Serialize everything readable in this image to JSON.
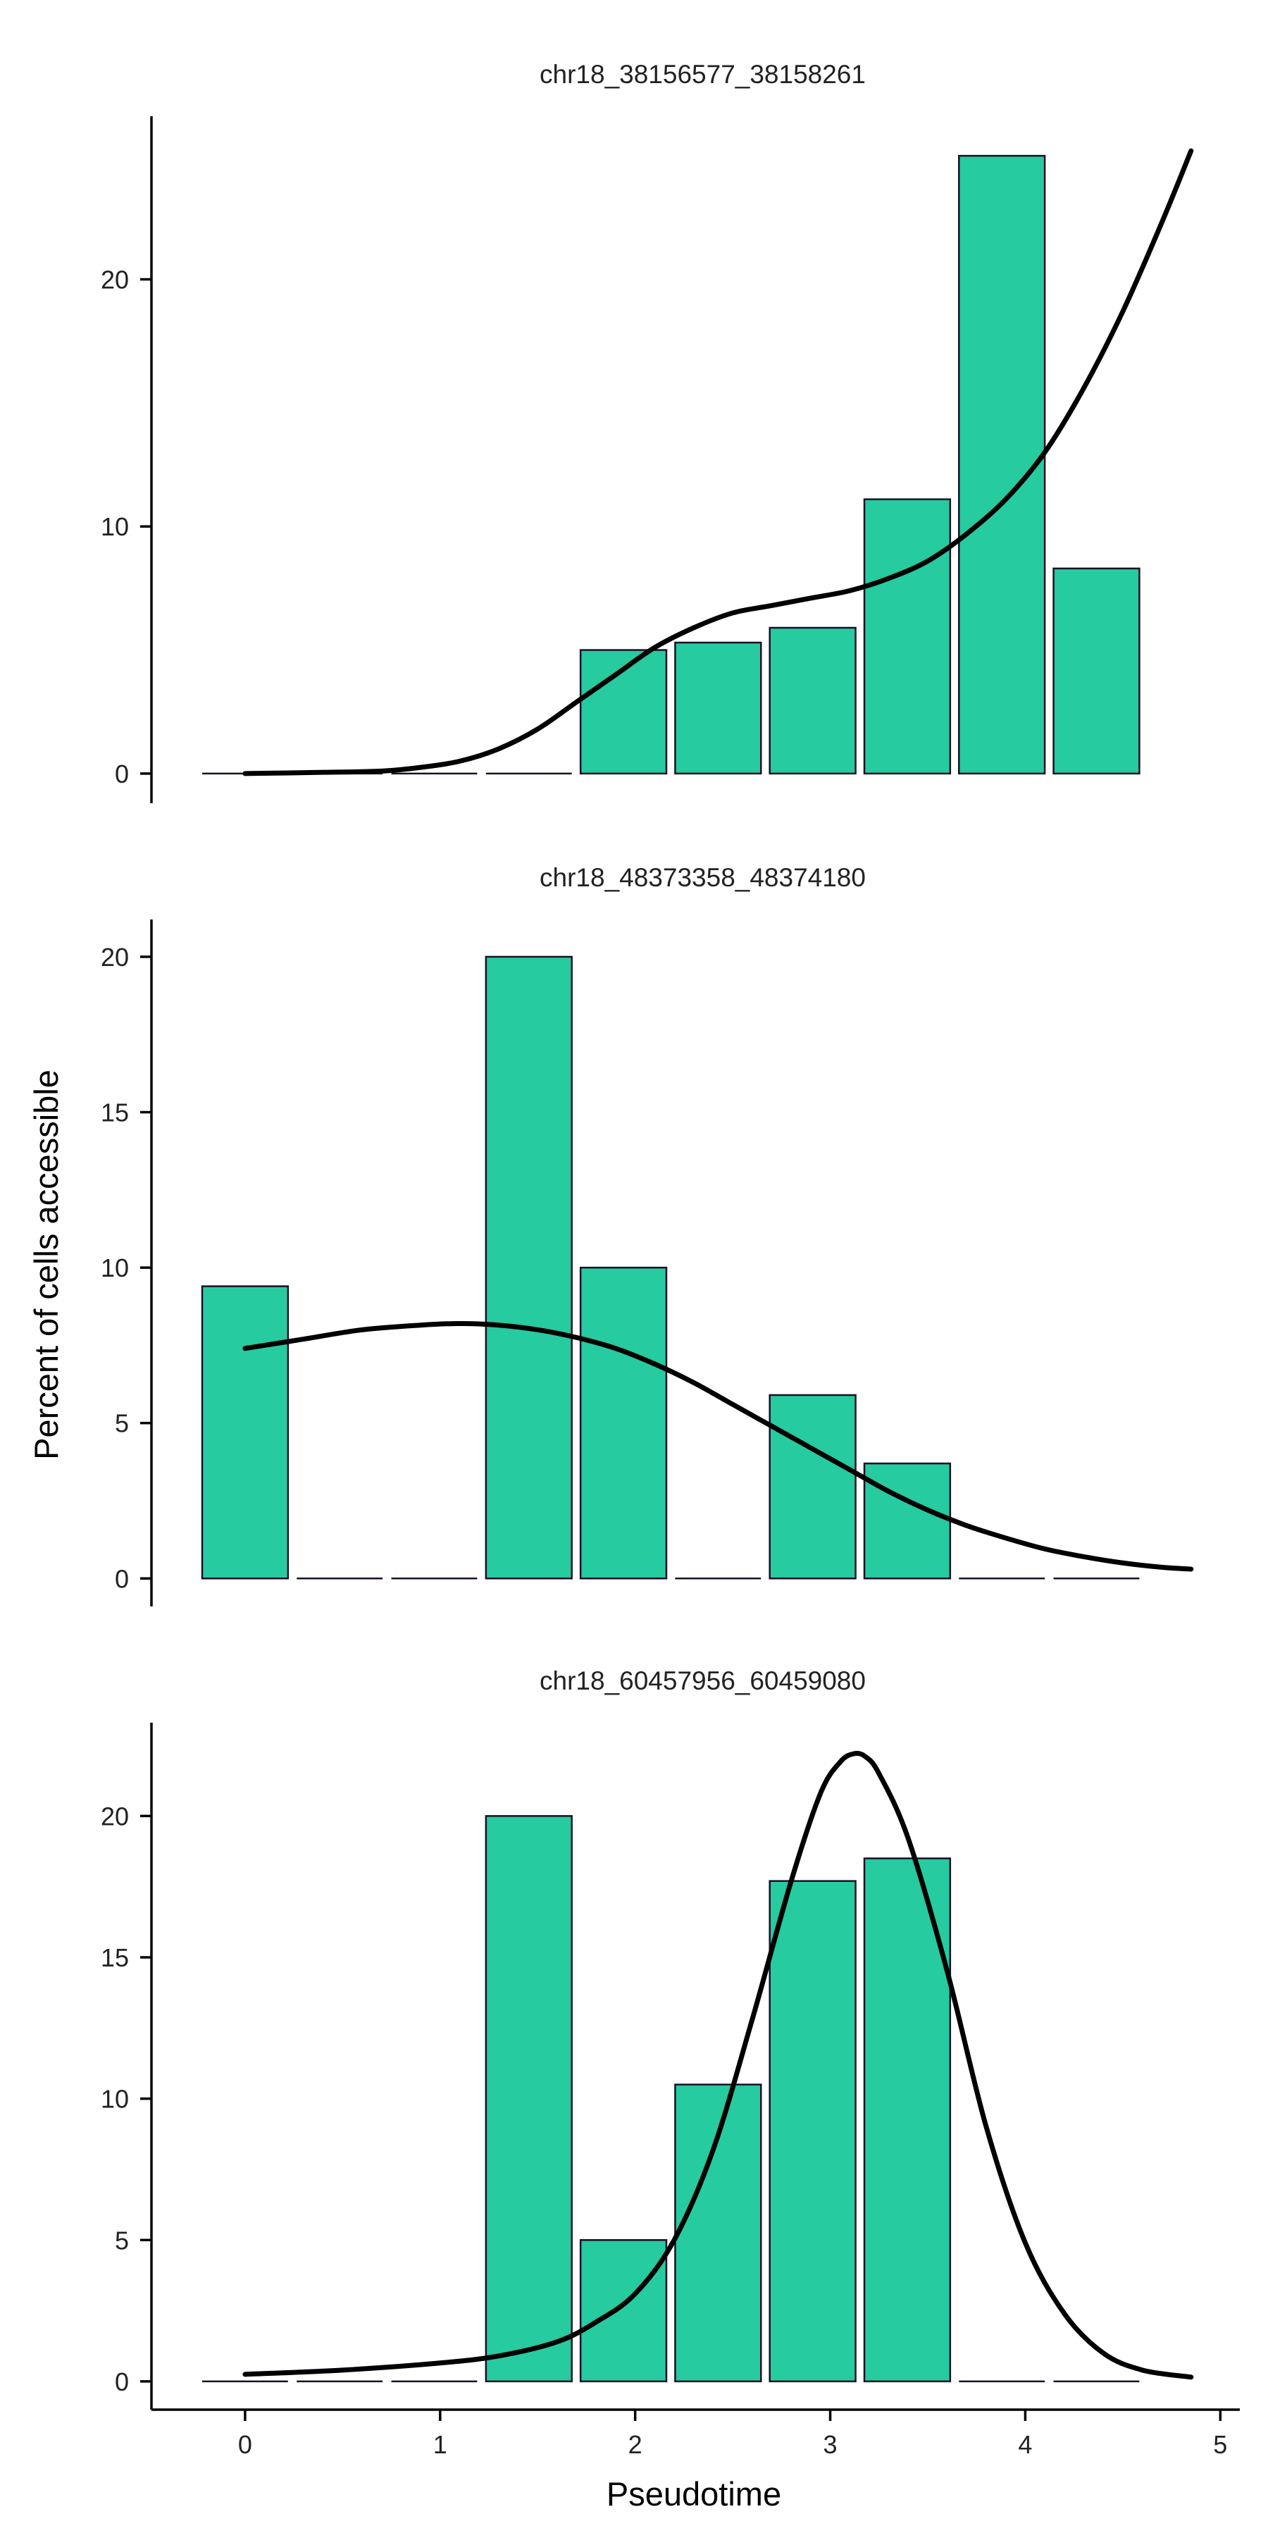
{
  "chart_data": {
    "type": "bar",
    "bar_color": "#26CBA0",
    "bar_stroke_color": "#1A0F26",
    "curve_color": "#000000",
    "xlabel": "Pseudotime",
    "ylabel": "Percent of cells accessible",
    "xlim": [
      -0.48,
      5.1
    ],
    "x_ticks": [
      0,
      1,
      2,
      3,
      4,
      5
    ],
    "bin_centers": [
      0,
      0.485,
      0.97,
      1.455,
      1.94,
      2.425,
      2.91,
      3.395,
      3.88,
      4.365
    ],
    "bin_width": 0.44,
    "grid": false,
    "legend": "none",
    "panels": [
      {
        "title": "chr18_38156577_38158261",
        "ylim": [
          -1.2,
          26.6
        ],
        "y_ticks": [
          0,
          10,
          20
        ],
        "values": [
          0,
          0,
          0,
          0,
          5.0,
          5.3,
          5.9,
          11.1,
          25.0,
          8.3
        ],
        "curve": {
          "x": [
            0,
            0.4,
            0.7,
            0.9,
            1.1,
            1.3,
            1.5,
            1.7,
            1.9,
            2.1,
            2.3,
            2.5,
            2.7,
            2.9,
            3.1,
            3.3,
            3.5,
            3.7,
            3.9,
            4.1,
            4.3,
            4.5,
            4.7,
            4.85
          ],
          "y": [
            0,
            0.05,
            0.1,
            0.25,
            0.5,
            1.0,
            1.8,
            2.9,
            4.0,
            5.1,
            5.9,
            6.5,
            6.8,
            7.1,
            7.4,
            7.9,
            8.6,
            9.7,
            11.1,
            13.0,
            15.6,
            18.7,
            22.3,
            25.2
          ]
        }
      },
      {
        "title": "chr18_48373358_48374180",
        "ylim": [
          -0.9,
          21.2
        ],
        "y_ticks": [
          0,
          5,
          10,
          15,
          20
        ],
        "values": [
          9.4,
          0,
          0,
          20.0,
          10.0,
          0,
          5.9,
          3.7,
          0,
          0
        ],
        "curve": {
          "x": [
            0,
            0.3,
            0.6,
            0.9,
            1.1,
            1.3,
            1.5,
            1.7,
            1.9,
            2.1,
            2.3,
            2.5,
            2.7,
            2.9,
            3.1,
            3.3,
            3.5,
            3.7,
            3.9,
            4.1,
            4.3,
            4.5,
            4.7,
            4.85
          ],
          "y": [
            7.4,
            7.7,
            8.0,
            8.15,
            8.2,
            8.15,
            8.0,
            7.75,
            7.4,
            6.9,
            6.3,
            5.6,
            4.9,
            4.2,
            3.5,
            2.8,
            2.2,
            1.7,
            1.3,
            0.95,
            0.7,
            0.5,
            0.36,
            0.3
          ]
        }
      },
      {
        "title": "chr18_60457956_60459080",
        "ylim": [
          -1.0,
          23.3
        ],
        "y_ticks": [
          0,
          5,
          10,
          15,
          20
        ],
        "values": [
          0,
          0,
          0,
          20.0,
          5.0,
          10.5,
          17.7,
          18.5,
          0,
          0
        ],
        "curve": {
          "x": [
            0,
            0.5,
            1.0,
            1.3,
            1.6,
            1.8,
            2.0,
            2.2,
            2.4,
            2.6,
            2.8,
            2.95,
            3.05,
            3.12,
            3.18,
            3.25,
            3.4,
            3.6,
            3.8,
            4.0,
            4.2,
            4.4,
            4.6,
            4.85
          ],
          "y": [
            0.25,
            0.4,
            0.65,
            0.9,
            1.4,
            2.1,
            3.1,
            5.0,
            8.2,
            12.8,
            17.7,
            20.8,
            21.9,
            22.2,
            22.1,
            21.5,
            19.2,
            14.5,
            9.0,
            4.9,
            2.4,
            1.0,
            0.4,
            0.15
          ]
        }
      }
    ]
  }
}
